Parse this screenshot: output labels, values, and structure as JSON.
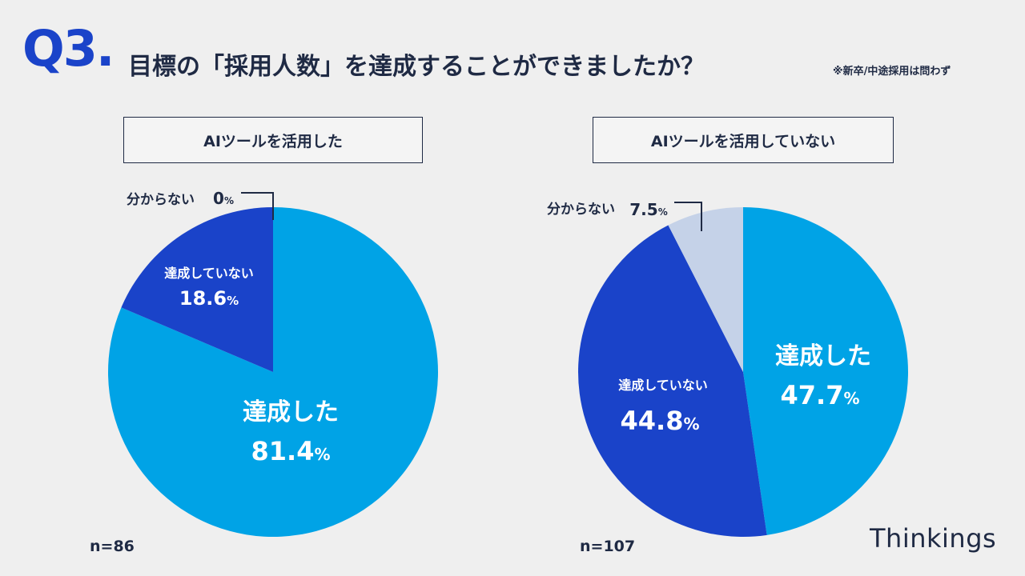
{
  "header": {
    "q_number": "Q3",
    "q_dot": ".",
    "title": "目標の「採用人数」を達成することができましたか？",
    "note": "※新卒/中途採用は問わず"
  },
  "colors": {
    "achieved": "#00a3e6",
    "not_achieved": "#1a43c9",
    "unknown": "#c5d2e8",
    "text_dark": "#1f2a44"
  },
  "chart_data": [
    {
      "type": "pie",
      "title": "AIツールを活用した",
      "n_label": "n=86",
      "slices": [
        {
          "label": "達成した",
          "value": 81.4,
          "display": "81.4",
          "unit": "%"
        },
        {
          "label": "達成していない",
          "value": 18.6,
          "display": "18.6",
          "unit": "%"
        },
        {
          "label": "分からない",
          "value": 0,
          "display": "0",
          "unit": "%"
        }
      ]
    },
    {
      "type": "pie",
      "title": "AIツールを活用していない",
      "n_label": "n=107",
      "slices": [
        {
          "label": "達成した",
          "value": 47.7,
          "display": "47.7",
          "unit": "%"
        },
        {
          "label": "達成していない",
          "value": 44.8,
          "display": "44.8",
          "unit": "%"
        },
        {
          "label": "分からない",
          "value": 7.5,
          "display": "7.5",
          "unit": "%"
        }
      ]
    }
  ],
  "brand": "Thinkings"
}
